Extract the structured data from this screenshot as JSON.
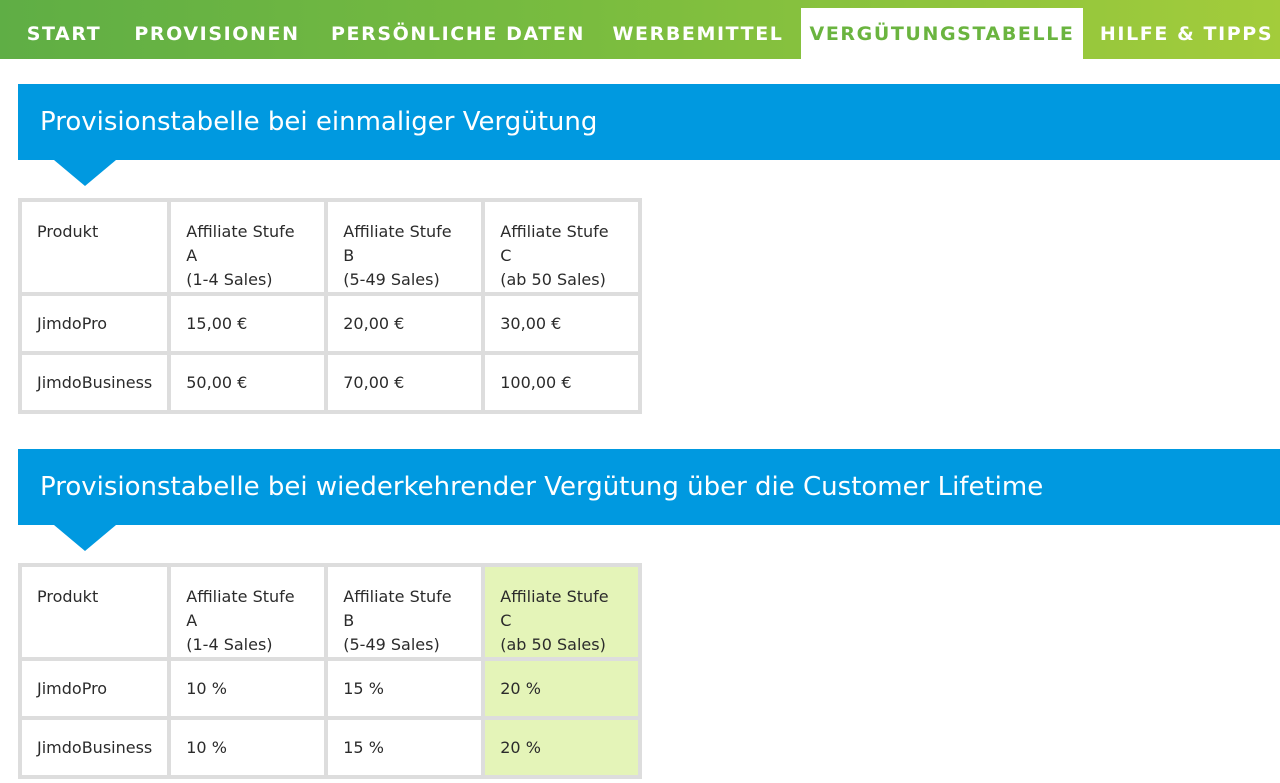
{
  "nav": {
    "tabs": [
      {
        "label": "START",
        "active": false
      },
      {
        "label": "PROVISIONEN",
        "active": false
      },
      {
        "label": "PERSÖNLICHE DATEN",
        "active": false
      },
      {
        "label": "WERBEMITTEL",
        "active": false
      },
      {
        "label": "VERGÜTUNGSTABELLE",
        "active": true
      },
      {
        "label": "HILFE & TIPPS",
        "active": false
      }
    ]
  },
  "colors": {
    "nav_green": "#79bc3f",
    "active_tab_text": "#6ab43f",
    "banner_blue": "#0099e0",
    "highlight_green": "#e4f4b8"
  },
  "section_one": {
    "title": "Provisionstabelle bei einmaliger Vergütung",
    "headers": [
      {
        "line1": "Produkt",
        "line2": ""
      },
      {
        "line1": "Affiliate Stufe A",
        "line2": "(1-4 Sales)"
      },
      {
        "line1": "Affiliate Stufe B",
        "line2": "(5-49 Sales)"
      },
      {
        "line1": "Affiliate Stufe C",
        "line2": "(ab 50 Sales)"
      }
    ],
    "rows": [
      [
        "JimdoPro",
        "15,00 €",
        "20,00 €",
        "30,00 €"
      ],
      [
        "JimdoBusiness",
        "50,00 €",
        "70,00 €",
        "100,00 €"
      ]
    ]
  },
  "section_two": {
    "title": "Provisionstabelle bei wiederkehrender Vergütung über die Customer Lifetime",
    "headers": [
      {
        "line1": "Produkt",
        "line2": ""
      },
      {
        "line1": "Affiliate Stufe A",
        "line2": "(1-4 Sales)"
      },
      {
        "line1": "Affiliate Stufe B",
        "line2": "(5-49 Sales)"
      },
      {
        "line1": "Affiliate Stufe C",
        "line2": "(ab 50 Sales)"
      }
    ],
    "rows": [
      [
        "JimdoPro",
        "10 %",
        "15 %",
        "20 %"
      ],
      [
        "JimdoBusiness",
        "10 %",
        "15 %",
        "20 %"
      ]
    ],
    "highlighted_column": "Affiliate Stufe C"
  }
}
